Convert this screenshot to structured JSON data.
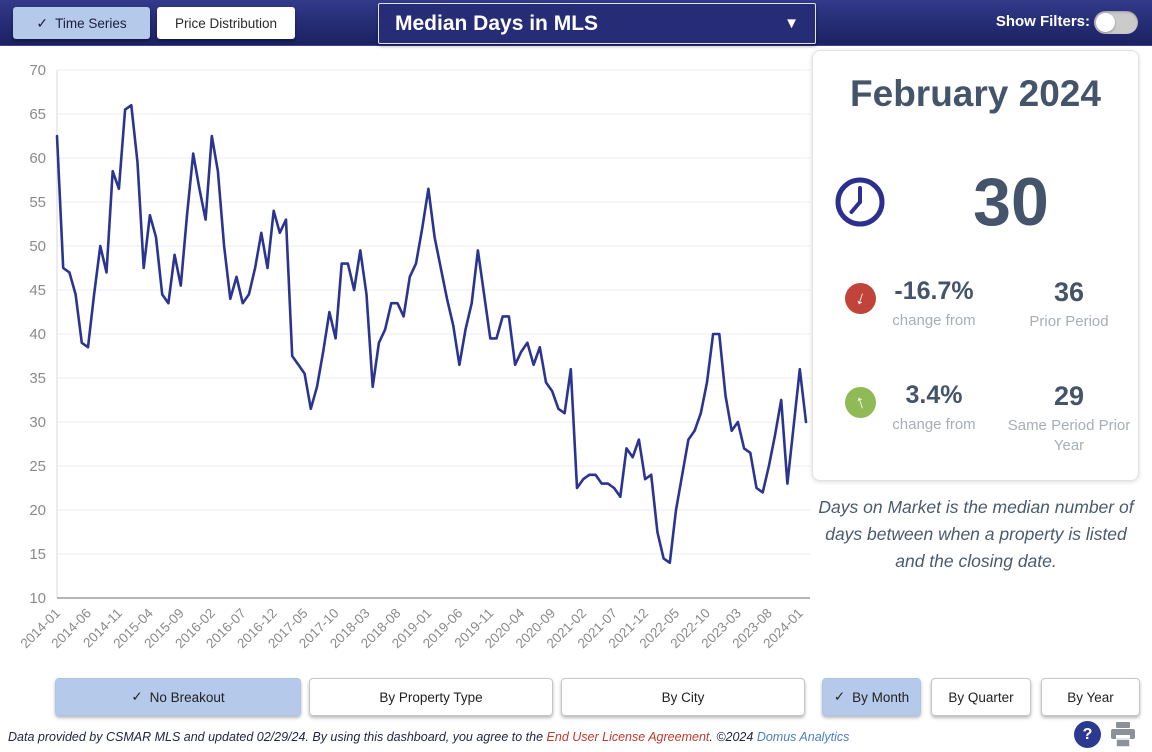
{
  "topbar": {
    "checkmark": "✓",
    "time_series_label": "Time Series",
    "price_distribution_label": "Price Distribution",
    "metric_dropdown_value": "Median Days in MLS",
    "dropdown_caret": "▼",
    "show_filters_label": "Show Filters:"
  },
  "card": {
    "title": "February 2024",
    "value": "30",
    "stats": [
      {
        "direction": "down",
        "icon_color": "#c0443a",
        "arrow": "↓",
        "pct": "-16.7%",
        "caption": "change from",
        "compare_value": "36",
        "compare_label": "Prior Period"
      },
      {
        "direction": "up",
        "icon_color": "#90ba55",
        "arrow": "↑",
        "pct": "3.4%",
        "caption": "change from",
        "compare_value": "29",
        "compare_label": "Same Period Prior Year"
      }
    ],
    "description": "Days on Market is the median number of days between when a property is listed and the closing date."
  },
  "breakout_buttons": [
    {
      "label": "No Breakout",
      "active": true
    },
    {
      "label": "By Property Type",
      "active": false
    },
    {
      "label": "By City",
      "active": false
    }
  ],
  "period_buttons": [
    {
      "label": "By Month",
      "active": true
    },
    {
      "label": "By Quarter",
      "active": false
    },
    {
      "label": "By Year",
      "active": false
    }
  ],
  "footer": {
    "prefix": "Data provided by CSMAR MLS and updated 02/29/24.  By using this dashboard, you agree to the ",
    "eula_link": "End User License Agreement",
    "middle": ".  ©2024 ",
    "brand_link": "Domus Analytics",
    "help_glyph": "?"
  },
  "chart_data": {
    "type": "line",
    "title": "Median Days in MLS",
    "x_start": "2014-01",
    "x_end": "2024-02",
    "x_tick_every": 5,
    "x_tick_labels": [
      "2014-01",
      "2014-06",
      "2014-11",
      "2015-04",
      "2015-09",
      "2016-02",
      "2016-07",
      "2016-12",
      "2017-05",
      "2017-10",
      "2018-03",
      "2018-08",
      "2019-01",
      "2019-06",
      "2019-11",
      "2020-04",
      "2020-09",
      "2021-02",
      "2021-07",
      "2021-12",
      "2022-05",
      "2022-10",
      "2023-03",
      "2023-08",
      "2024-01"
    ],
    "ylim": [
      10,
      70
    ],
    "y_ticks": [
      70,
      65,
      60,
      55,
      50,
      45,
      40,
      35,
      30,
      25,
      20,
      15,
      10
    ],
    "grid": true,
    "legend": "none",
    "line_color": "#2b3591",
    "values": [
      62.5,
      47.5,
      47,
      44.5,
      39,
      38.5,
      44.5,
      50,
      47,
      58.5,
      56.5,
      65.5,
      66,
      59.5,
      47.5,
      53.5,
      51,
      44.5,
      43.5,
      49,
      45.5,
      53.5,
      60.5,
      56.5,
      53,
      62.5,
      58.5,
      50,
      44,
      46.5,
      43.5,
      44.5,
      47.5,
      51.5,
      47.5,
      54,
      51.5,
      53,
      37.5,
      36.5,
      35.5,
      31.5,
      34,
      38,
      42.5,
      39.5,
      48,
      48,
      45,
      49.5,
      44.5,
      34,
      39,
      40.5,
      43.5,
      43.5,
      42,
      46.5,
      48,
      52,
      56.5,
      51,
      47.5,
      44,
      41,
      36.5,
      40.5,
      43.5,
      49.5,
      44.5,
      39.5,
      39.5,
      42,
      42,
      36.5,
      38,
      39,
      36.5,
      38.5,
      34.5,
      33.5,
      31.5,
      31,
      36,
      22.5,
      23.5,
      24,
      24,
      23,
      23,
      22.5,
      21.5,
      27,
      26,
      28,
      23.5,
      24,
      17.5,
      14.5,
      14,
      20,
      24,
      28,
      29,
      31,
      34.5,
      40,
      40,
      33,
      29,
      30,
      27,
      26.5,
      22.5,
      22,
      25,
      28.5,
      32.5,
      23,
      29.5,
      36,
      30
    ]
  }
}
